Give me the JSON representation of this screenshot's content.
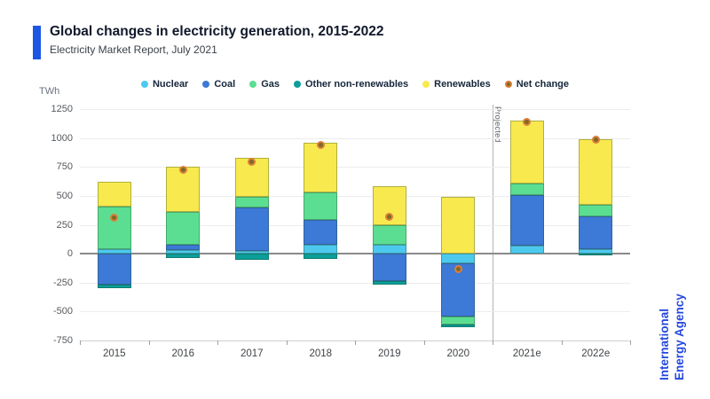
{
  "header": {
    "title": "Global changes in electricity generation, 2015-2022",
    "subtitle": "Electricity Market Report, July 2021"
  },
  "axis": {
    "unit": "TWh",
    "y_ticks": [
      1250,
      1000,
      750,
      500,
      250,
      0,
      -250,
      -500,
      -750
    ],
    "x_labels": [
      "2015",
      "2016",
      "2017",
      "2018",
      "2019",
      "2020",
      "2021e",
      "2022e"
    ]
  },
  "annotations": {
    "projected_label": "Projected",
    "brand_line1": "International",
    "brand_line2": "Energy Agency"
  },
  "colors": {
    "accent": "#1B57E4",
    "brand_text": "#2547DE",
    "nuclear": "#4DC9EE",
    "coal": "#3D79D6",
    "gas": "#5CDE92",
    "other": "#0C9E9A",
    "renewables": "#F8E94E",
    "net_ring": "#DC7E3C",
    "net_center": "#7C6B22"
  },
  "chart_data": {
    "type": "bar",
    "stacked": true,
    "title": "Global changes in electricity generation, 2015-2022 (TWh)",
    "unit": "TWh",
    "ylim": [
      -750,
      1250
    ],
    "grid": true,
    "legend_position": "top",
    "categories": [
      "2015",
      "2016",
      "2017",
      "2018",
      "2019",
      "2020",
      "2021e",
      "2022e"
    ],
    "series": [
      {
        "name": "Nuclear",
        "key": "nuclear",
        "values": [
          40,
          30,
          25,
          80,
          75,
          -85,
          70,
          40
        ]
      },
      {
        "name": "Coal",
        "key": "coal",
        "values": [
          -270,
          50,
          375,
          215,
          -240,
          -455,
          440,
          280
        ]
      },
      {
        "name": "Gas",
        "key": "gas",
        "values": [
          370,
          280,
          90,
          235,
          170,
          -75,
          95,
          105
        ]
      },
      {
        "name": "Other non-renewables",
        "key": "other",
        "values": [
          -30,
          -35,
          -55,
          -45,
          -25,
          -20,
          0,
          -15
        ]
      },
      {
        "name": "Renewables",
        "key": "renewables",
        "values": [
          210,
          395,
          340,
          430,
          335,
          490,
          545,
          565
        ]
      }
    ],
    "marker_series": {
      "name": "Net change",
      "key": "net",
      "values": [
        310,
        725,
        795,
        940,
        320,
        -135,
        1140,
        985
      ]
    },
    "projected_from_category": "2021e"
  }
}
